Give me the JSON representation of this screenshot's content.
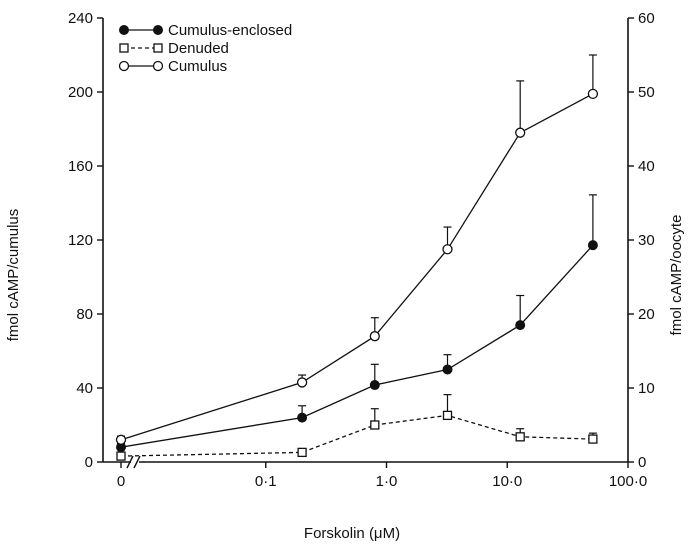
{
  "chart_data": {
    "type": "line",
    "xlabel": "Forskolin (μM)",
    "ylabel_left": "fmol cAMP/cumulus",
    "ylabel_right": "fmol cAMP/oocyte",
    "x_scale": "log10 with axis break; 0 shown left of break",
    "x_ticks": [
      {
        "value": 0,
        "label": "0"
      },
      {
        "value": 0.1,
        "label": "0·1"
      },
      {
        "value": 1,
        "label": "1·0"
      },
      {
        "value": 10,
        "label": "10·0"
      },
      {
        "value": 100,
        "label": "100·0"
      }
    ],
    "ylim_left": [
      0,
      240
    ],
    "y_ticks_left": [
      "0",
      "40",
      "80",
      "120",
      "160",
      "200",
      "240"
    ],
    "ylim_right": [
      0,
      60
    ],
    "y_ticks_right": [
      "0",
      "10",
      "20",
      "30",
      "40",
      "50",
      "60"
    ],
    "legend_position": "top-left",
    "series": [
      {
        "name": "Cumulus-enclosed",
        "axis": "right",
        "marker": "filled-circle",
        "line": "solid",
        "points": [
          {
            "x": 0,
            "y": 2.0,
            "err": 0.5
          },
          {
            "x": 0.2,
            "y": 6.0,
            "err": 1.6
          },
          {
            "x": 0.8,
            "y": 10.4,
            "err": 2.8
          },
          {
            "x": 3.2,
            "y": 12.5,
            "err": 2.0
          },
          {
            "x": 12.8,
            "y": 18.5,
            "err": 4.0
          },
          {
            "x": 51.2,
            "y": 29.3,
            "err": 6.8
          }
        ]
      },
      {
        "name": "Denuded",
        "axis": "right",
        "marker": "open-square",
        "line": "dashed",
        "points": [
          {
            "x": 0,
            "y": 0.8,
            "err": 0.5
          },
          {
            "x": 0.2,
            "y": 1.3,
            "err": 0.5
          },
          {
            "x": 0.8,
            "y": 5.0,
            "err": 2.2
          },
          {
            "x": 3.2,
            "y": 6.3,
            "err": 2.8
          },
          {
            "x": 12.8,
            "y": 3.4,
            "err": 1.1
          },
          {
            "x": 51.2,
            "y": 3.1,
            "err": 0.8
          }
        ]
      },
      {
        "name": "Cumulus",
        "axis": "left",
        "marker": "open-circle",
        "line": "solid",
        "points": [
          {
            "x": 0,
            "y": 12,
            "err": 2
          },
          {
            "x": 0.2,
            "y": 43,
            "err": 4
          },
          {
            "x": 0.8,
            "y": 68,
            "err": 10
          },
          {
            "x": 3.2,
            "y": 115,
            "err": 12
          },
          {
            "x": 12.8,
            "y": 178,
            "err": 28
          },
          {
            "x": 51.2,
            "y": 199,
            "err": 21
          }
        ]
      }
    ]
  }
}
